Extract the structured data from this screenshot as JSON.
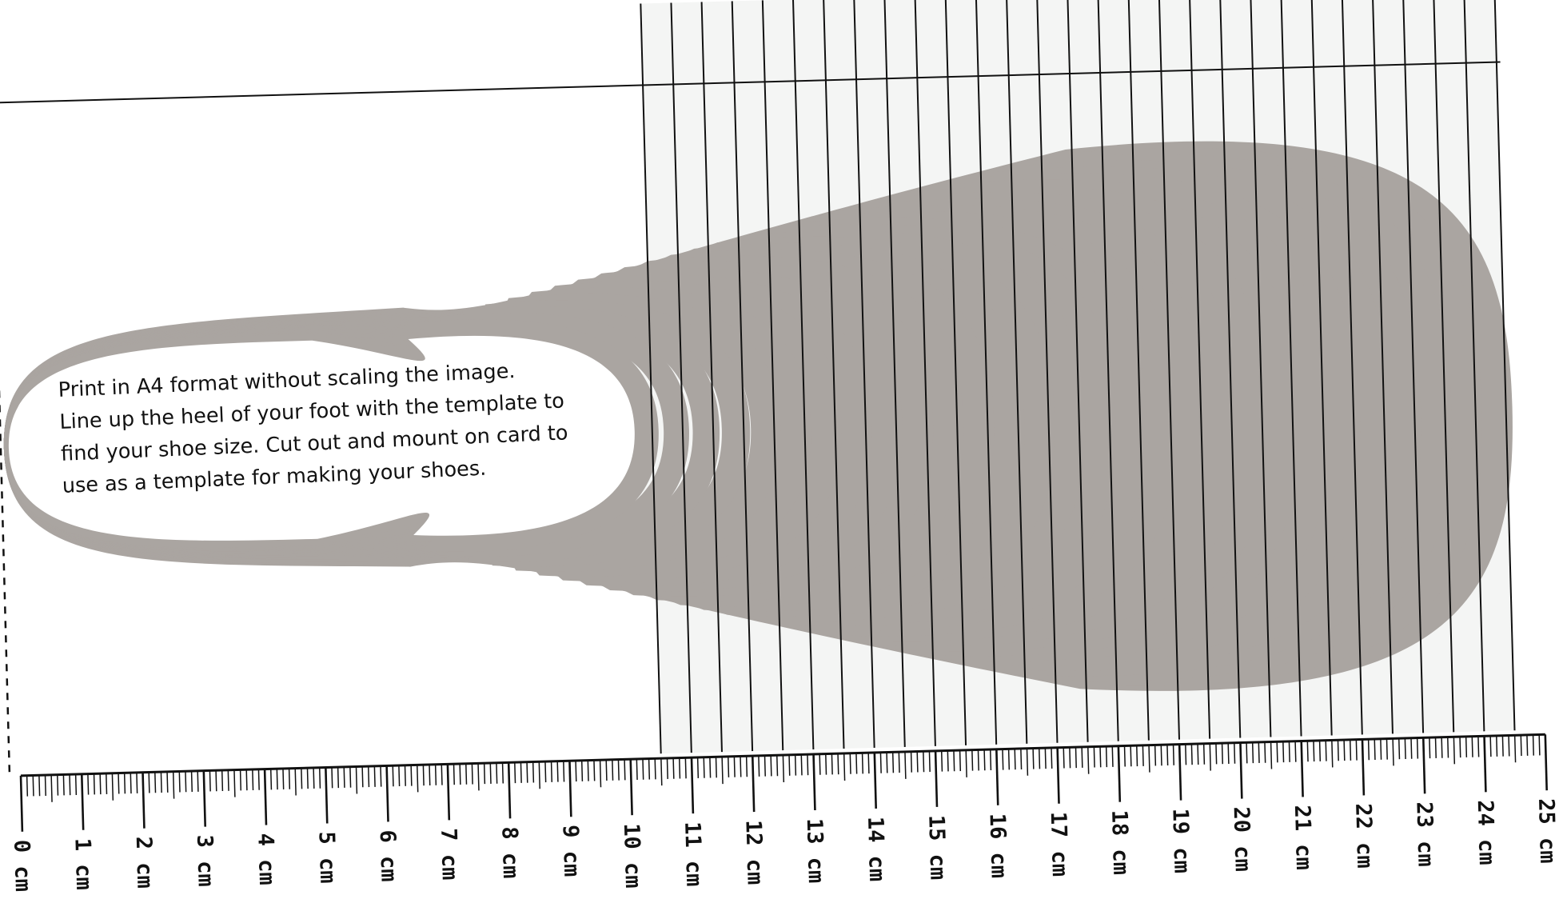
{
  "instructions": {
    "line1": "Print in A4 format without scaling the image.",
    "line2": "Line up the heel of your foot with the template to",
    "line3": "find your shoe size. Cut out and mount on card to",
    "line4": "use as a template for making your shoes."
  },
  "ruler": {
    "unit": "cm",
    "labels": [
      "0 cm",
      "1 cm",
      "2 cm",
      "3 cm",
      "4 cm",
      "5 cm",
      "6 cm",
      "7 cm",
      "8 cm",
      "9 cm",
      "10 cm",
      "11 cm",
      "12 cm",
      "13 cm",
      "14 cm",
      "15 cm",
      "16 cm",
      "17 cm",
      "18 cm",
      "19 cm",
      "20 cm",
      "21 cm",
      "22 cm",
      "23 cm",
      "24 cm",
      "25 cm"
    ],
    "size_lines_start_cm": 10.5,
    "size_lines_end_cm": 24.5,
    "size_line_step_cm": 0.5
  },
  "colors": {
    "outline": "#aaa5a1",
    "band": "#f4f5f4",
    "ink": "#111111"
  }
}
